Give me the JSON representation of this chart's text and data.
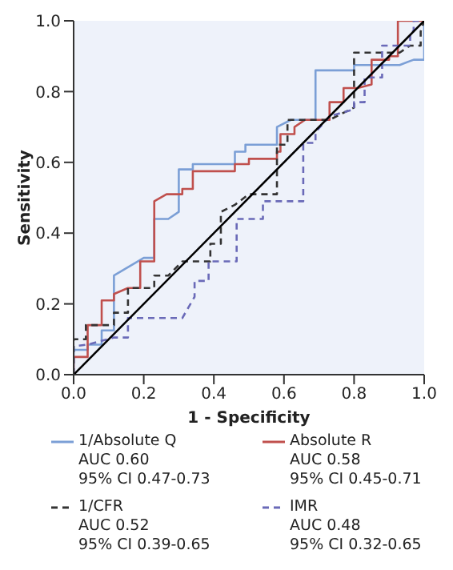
{
  "chart_data": {
    "type": "line",
    "xlabel": "1 - Specificity",
    "ylabel": "Sensitivity",
    "xlim": [
      0,
      1
    ],
    "ylim": [
      0,
      1
    ],
    "xticks": [
      {
        "value": 0,
        "label": "0.0"
      },
      0.2,
      0.4,
      0.6,
      0.8,
      {
        "value": 1,
        "label": "1.0"
      }
    ],
    "yticks": [
      {
        "value": 0,
        "label": "0.0"
      },
      0.2,
      0.4,
      0.6,
      0.8,
      {
        "value": 1,
        "label": "1.0"
      }
    ],
    "grid": false,
    "legend": "bottom",
    "marker": "none",
    "series": [
      {
        "name": "1/Absolute Q",
        "color": "#7b9fd6",
        "line_style": "solid",
        "x": [
          0,
          0,
          0.04,
          0.04,
          0.08,
          0.08,
          0.115,
          0.115,
          0.2,
          0.23,
          0.23,
          0.27,
          0.3,
          0.3,
          0.34,
          0.34,
          0.46,
          0.46,
          0.49,
          0.49,
          0.58,
          0.58,
          0.62,
          0.69,
          0.69,
          0.8,
          0.8,
          0.93,
          0.97,
          1,
          1
        ],
        "values": [
          0,
          0.07,
          0.07,
          0.085,
          0.085,
          0.125,
          0.125,
          0.28,
          0.33,
          0.33,
          0.44,
          0.44,
          0.46,
          0.58,
          0.58,
          0.595,
          0.595,
          0.63,
          0.63,
          0.65,
          0.65,
          0.7,
          0.72,
          0.72,
          0.86,
          0.86,
          0.875,
          0.875,
          0.89,
          0.89,
          1
        ]
      },
      {
        "name": "Absolute R",
        "color": "#c0504d",
        "line_style": "solid",
        "x": [
          0,
          0,
          0.04,
          0.04,
          0.08,
          0.08,
          0.115,
          0.115,
          0.155,
          0.19,
          0.19,
          0.23,
          0.23,
          0.265,
          0.31,
          0.31,
          0.34,
          0.34,
          0.46,
          0.46,
          0.5,
          0.5,
          0.58,
          0.58,
          0.59,
          0.59,
          0.63,
          0.63,
          0.66,
          0.73,
          0.73,
          0.77,
          0.77,
          0.81,
          0.85,
          0.85,
          0.9,
          0.9,
          0.925,
          0.925,
          1
        ],
        "values": [
          0,
          0.05,
          0.05,
          0.14,
          0.14,
          0.21,
          0.21,
          0.228,
          0.245,
          0.245,
          0.32,
          0.32,
          0.49,
          0.51,
          0.51,
          0.525,
          0.525,
          0.575,
          0.575,
          0.595,
          0.595,
          0.61,
          0.61,
          0.63,
          0.63,
          0.68,
          0.68,
          0.7,
          0.72,
          0.72,
          0.77,
          0.77,
          0.81,
          0.81,
          0.82,
          0.89,
          0.89,
          0.9,
          0.9,
          1,
          1
        ]
      },
      {
        "name": "1/CFR",
        "color": "#333333",
        "line_style": "dashed",
        "x": [
          0,
          0,
          0.035,
          0.035,
          0.115,
          0.115,
          0.155,
          0.155,
          0.23,
          0.23,
          0.27,
          0.31,
          0.39,
          0.39,
          0.42,
          0.42,
          0.46,
          0.5,
          0.58,
          0.58,
          0.61,
          0.61,
          0.73,
          0.8,
          0.8,
          0.93,
          0.96,
          0.99,
          0.99,
          1
        ],
        "values": [
          0,
          0.1,
          0.1,
          0.14,
          0.14,
          0.175,
          0.175,
          0.245,
          0.245,
          0.28,
          0.28,
          0.32,
          0.32,
          0.37,
          0.37,
          0.46,
          0.48,
          0.51,
          0.51,
          0.65,
          0.65,
          0.72,
          0.72,
          0.755,
          0.91,
          0.91,
          0.93,
          0.93,
          0.97,
          1
        ]
      },
      {
        "name": "IMR",
        "color": "#6a6ab8",
        "line_style": "dashed",
        "x": [
          0,
          0,
          0.04,
          0.115,
          0.155,
          0.155,
          0.31,
          0.345,
          0.345,
          0.385,
          0.385,
          0.465,
          0.465,
          0.54,
          0.54,
          0.655,
          0.655,
          0.69,
          0.69,
          0.73,
          0.8,
          0.8,
          0.83,
          0.83,
          0.88,
          0.88,
          0.96,
          0.96,
          0.97,
          0.97,
          1
        ],
        "values": [
          0,
          0.08,
          0.085,
          0.105,
          0.105,
          0.16,
          0.16,
          0.22,
          0.265,
          0.265,
          0.32,
          0.32,
          0.44,
          0.44,
          0.49,
          0.49,
          0.655,
          0.655,
          0.685,
          0.73,
          0.75,
          0.77,
          0.77,
          0.84,
          0.84,
          0.93,
          0.93,
          0.97,
          0.97,
          1,
          1
        ]
      },
      {
        "color": "#000000",
        "line_style": "solid",
        "x": [
          0,
          1
        ],
        "values": [
          0,
          1
        ]
      }
    ],
    "annotations": [
      "AUC 0.60",
      "95% CI 0.47-0.73",
      "AUC 0.58",
      "95% CI 0.45-0.71",
      "AUC 0.52",
      "95% CI 0.39-0.65",
      "AUC 0.48",
      "95% CI 0.32-0.65"
    ]
  }
}
